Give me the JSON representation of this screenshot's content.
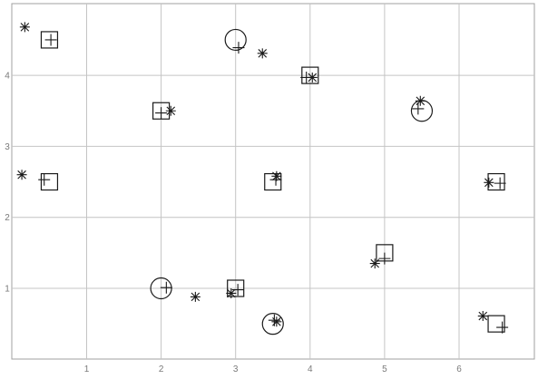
{
  "chart_data": {
    "type": "scatter",
    "title": "",
    "xlabel": "",
    "ylabel": "",
    "xlim": [
      -0.05,
      7.0
    ],
    "ylim": [
      0.0,
      5.0
    ],
    "xticks": [
      1,
      2,
      3,
      4,
      5,
      6
    ],
    "yticks": [
      1,
      2,
      3,
      4
    ],
    "xtick_labels": [
      "1",
      "2",
      "3",
      "4",
      "5",
      "6"
    ],
    "ytick_labels": [
      "1",
      "2",
      "3",
      "4"
    ],
    "grid": true,
    "series": [
      {
        "marker": "square",
        "values": [
          {
            "x": 0.5,
            "y": 4.5
          },
          {
            "x": 0.5,
            "y": 2.5
          },
          {
            "x": 2.0,
            "y": 3.5
          },
          {
            "x": 3.0,
            "y": 1.0
          },
          {
            "x": 3.5,
            "y": 2.5
          },
          {
            "x": 4.0,
            "y": 4.0
          },
          {
            "x": 5.0,
            "y": 1.5
          },
          {
            "x": 6.5,
            "y": 2.5
          },
          {
            "x": 6.5,
            "y": 0.5
          }
        ]
      },
      {
        "marker": "circle",
        "values": [
          {
            "x": 3.0,
            "y": 4.5
          },
          {
            "x": 5.5,
            "y": 3.5
          },
          {
            "x": 2.0,
            "y": 1.0
          },
          {
            "x": 3.5,
            "y": 0.5
          }
        ]
      },
      {
        "marker": "plus",
        "values": [
          {
            "x": 0.52,
            "y": 4.5
          },
          {
            "x": 0.43,
            "y": 2.53
          },
          {
            "x": 2.0,
            "y": 3.47
          },
          {
            "x": 3.04,
            "y": 4.39
          },
          {
            "x": 3.95,
            "y": 3.97
          },
          {
            "x": 5.45,
            "y": 3.53
          },
          {
            "x": 3.54,
            "y": 2.53
          },
          {
            "x": 6.55,
            "y": 2.48
          },
          {
            "x": 5.0,
            "y": 1.42
          },
          {
            "x": 2.07,
            "y": 1.01
          },
          {
            "x": 3.03,
            "y": 0.98
          },
          {
            "x": 3.52,
            "y": 0.55
          },
          {
            "x": 6.58,
            "y": 0.45
          }
        ]
      },
      {
        "marker": "asterisk",
        "values": [
          {
            "x": 0.17,
            "y": 4.68
          },
          {
            "x": 3.36,
            "y": 4.31
          },
          {
            "x": 4.03,
            "y": 3.97
          },
          {
            "x": 2.13,
            "y": 3.5
          },
          {
            "x": 5.48,
            "y": 3.64
          },
          {
            "x": 0.13,
            "y": 2.6
          },
          {
            "x": 3.55,
            "y": 2.58
          },
          {
            "x": 6.4,
            "y": 2.49
          },
          {
            "x": 4.87,
            "y": 1.35
          },
          {
            "x": 2.46,
            "y": 0.88
          },
          {
            "x": 2.94,
            "y": 0.93
          },
          {
            "x": 3.55,
            "y": 0.53
          },
          {
            "x": 6.32,
            "y": 0.61
          }
        ]
      }
    ]
  }
}
